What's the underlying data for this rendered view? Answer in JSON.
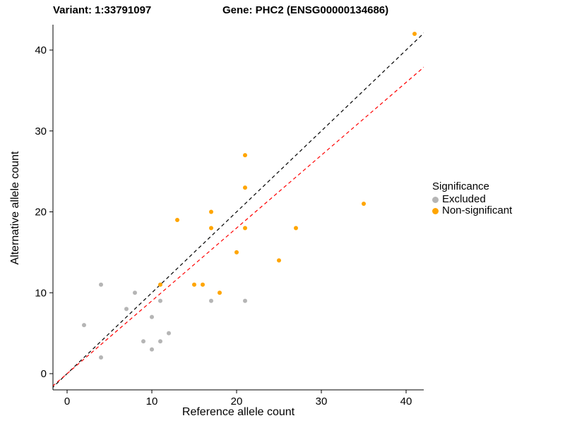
{
  "header": {
    "title_left": "Variant: 1:33791097",
    "title_right": "Gene: PHC2 (ENSG00000134686)"
  },
  "chart_data": {
    "type": "scatter",
    "xlabel": "Reference allele count",
    "ylabel": "Alternative allele count",
    "xlim": [
      -1.7,
      42.1
    ],
    "ylim": [
      -2,
      43.1
    ],
    "xticks": [
      0,
      10,
      20,
      30,
      40
    ],
    "yticks": [
      0,
      10,
      20,
      30,
      40
    ],
    "grid": false,
    "legend": {
      "title": "Significance",
      "position": "right",
      "entries": [
        {
          "label": "Excluded",
          "color": "#B5B5B5"
        },
        {
          "label": "Non-significant",
          "color": "#FFA500"
        }
      ]
    },
    "lines": [
      {
        "name": "identity-line",
        "slope": 1,
        "intercept": 0,
        "color": "#000000",
        "style": "dashed"
      },
      {
        "name": "fit-line",
        "slope": 0.9,
        "intercept": 0,
        "color": "#FF0000",
        "style": "dashed"
      }
    ],
    "series": [
      {
        "name": "Excluded",
        "color": "#B5B5B5",
        "points": [
          [
            2,
            6
          ],
          [
            4,
            11
          ],
          [
            4,
            2
          ],
          [
            7,
            8
          ],
          [
            8,
            10
          ],
          [
            9,
            4
          ],
          [
            10,
            3
          ],
          [
            10,
            7
          ],
          [
            11,
            4
          ],
          [
            11,
            9
          ],
          [
            12,
            5
          ],
          [
            17,
            9
          ],
          [
            21,
            9
          ]
        ]
      },
      {
        "name": "Non-significant",
        "color": "#FFA500",
        "points": [
          [
            11,
            11
          ],
          [
            13,
            19
          ],
          [
            15,
            11
          ],
          [
            16,
            11
          ],
          [
            17,
            18
          ],
          [
            17,
            20
          ],
          [
            18,
            10
          ],
          [
            20,
            15
          ],
          [
            21,
            18
          ],
          [
            21,
            23
          ],
          [
            21,
            27
          ],
          [
            25,
            14
          ],
          [
            27,
            18
          ],
          [
            35,
            21
          ],
          [
            41,
            42
          ]
        ]
      }
    ]
  }
}
